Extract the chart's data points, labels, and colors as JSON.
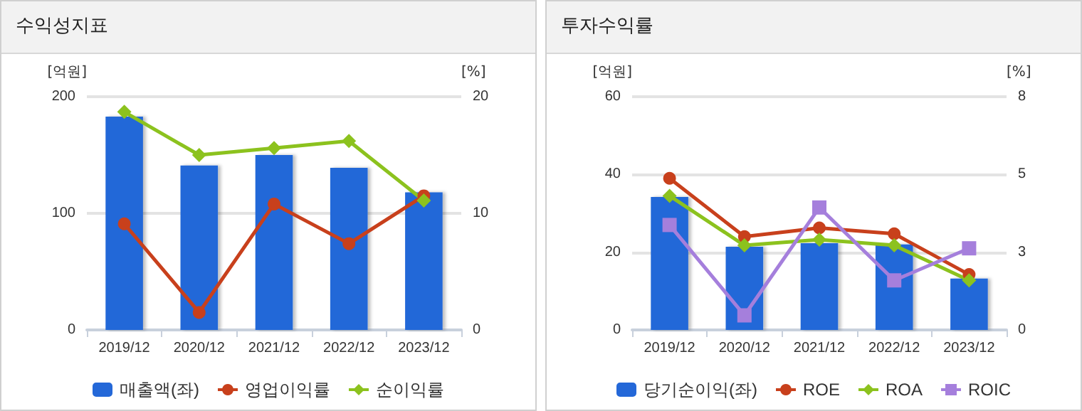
{
  "chart_data": [
    {
      "type": "bar",
      "title": "수익성지표",
      "ylabel": "[억원]",
      "y2label": "[%]",
      "categories": [
        "2019/12",
        "2020/12",
        "2021/12",
        "2022/12",
        "2023/12"
      ],
      "series": [
        {
          "name": "매출액(좌)",
          "color": "#2468d8",
          "values": [
            183,
            141,
            150,
            139,
            118
          ]
        },
        {
          "name": "영업이익률",
          "type": "line",
          "axis": "y2",
          "marker": "circle",
          "color": "#c8401c",
          "values": [
            9.1,
            1.5,
            10.8,
            7.4,
            11.5
          ]
        },
        {
          "name": "순이익률",
          "type": "line",
          "axis": "y2",
          "marker": "diamond",
          "color": "#8cc21e",
          "values": [
            18.7,
            15.0,
            15.6,
            16.2,
            11.1
          ]
        }
      ],
      "ylim": [
        0,
        200
      ],
      "yticks": [
        0,
        100,
        200
      ],
      "y2lim": [
        0,
        20
      ],
      "y2ticks": [
        0,
        10,
        20
      ],
      "grid": "y",
      "legend": "bottom"
    },
    {
      "type": "bar",
      "title": "투자수익률",
      "ylabel": "[억원]",
      "y2label": "[%]",
      "categories": [
        "2019/12",
        "2020/12",
        "2021/12",
        "2022/12",
        "2023/12"
      ],
      "series": [
        {
          "name": "당기순이익(좌)",
          "color": "#2468d8",
          "values": [
            34.2,
            21.4,
            22.3,
            22.0,
            13.2
          ]
        },
        {
          "name": "ROE",
          "type": "line",
          "axis": "y2",
          "marker": "circle",
          "color": "#c8401c",
          "values": [
            5.2,
            3.2,
            3.5,
            3.3,
            1.9
          ]
        },
        {
          "name": "ROA",
          "type": "line",
          "axis": "y2",
          "marker": "diamond",
          "color": "#8cc21e",
          "values": [
            4.6,
            2.9,
            3.1,
            2.9,
            1.7
          ]
        },
        {
          "name": "ROIC",
          "type": "line",
          "axis": "y2",
          "marker": "square",
          "color": "#a57fdc",
          "values": [
            3.6,
            0.5,
            4.2,
            1.7,
            2.8
          ]
        }
      ],
      "ylim": [
        0,
        60
      ],
      "yticks": [
        0,
        20,
        40,
        60
      ],
      "y2lim": [
        0,
        8
      ],
      "y2ticks": [
        0,
        {
          "value": 2.6667,
          "label": "3"
        },
        {
          "value": 5.3333,
          "label": "5"
        },
        8
      ],
      "grid": "y",
      "legend": "bottom"
    }
  ]
}
